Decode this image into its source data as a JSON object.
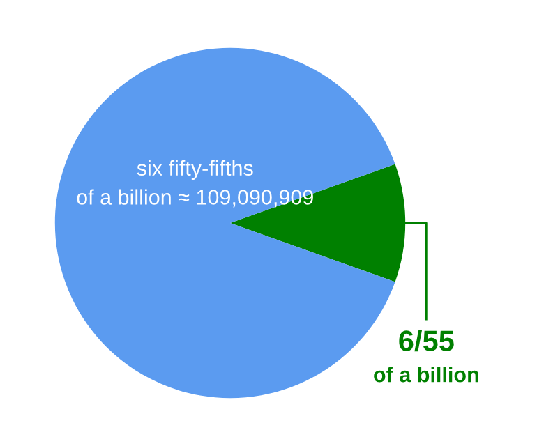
{
  "chart_data": {
    "type": "pie",
    "categories": [
      "6/55",
      null
    ],
    "values": [
      10.91,
      89.09
    ],
    "colors": [
      "#008000",
      "#5b9bf0"
    ],
    "annotations": [
      "six fifty-fifths\nof a billion ≈ 109,090,909",
      "of a billion"
    ]
  }
}
